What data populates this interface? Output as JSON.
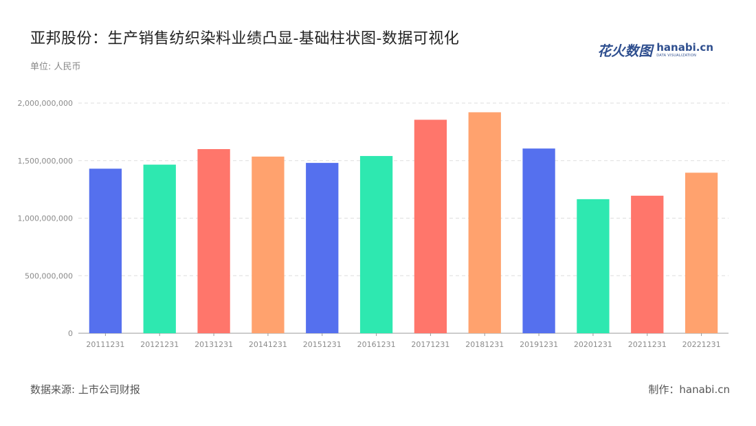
{
  "header": {
    "title": "亚邦股份：生产销售纺织染料业绩凸显-基础柱状图-数据可视化",
    "unit": "单位: 人民币"
  },
  "logo": {
    "cn": "花火数图",
    "en": "hanabi.cn",
    "en_sub": "DATA VISUALIZATION"
  },
  "footer": {
    "source": "数据来源: 上市公司财报",
    "maker": "制作：hanabi.cn"
  },
  "colors": {
    "palette": [
      "#5570ee",
      "#2ee8b0",
      "#ff766b",
      "#ffa26e"
    ],
    "grid": "#dddddd",
    "axis": "#999999"
  },
  "chart_data": {
    "type": "bar",
    "categories": [
      "20111231",
      "20121231",
      "20131231",
      "20141231",
      "20151231",
      "20161231",
      "20171231",
      "20181231",
      "20191231",
      "20201231",
      "20211231",
      "20221231"
    ],
    "values": [
      1430000000,
      1465000000,
      1600000000,
      1535000000,
      1480000000,
      1540000000,
      1855000000,
      1920000000,
      1605000000,
      1165000000,
      1195000000,
      1395000000
    ],
    "yticks": [
      "0",
      "500,000,000",
      "1,000,000,000",
      "1,500,000,000",
      "2,000,000,000"
    ],
    "ylim": [
      0,
      2000000000
    ],
    "grid": true,
    "legend": "none"
  }
}
